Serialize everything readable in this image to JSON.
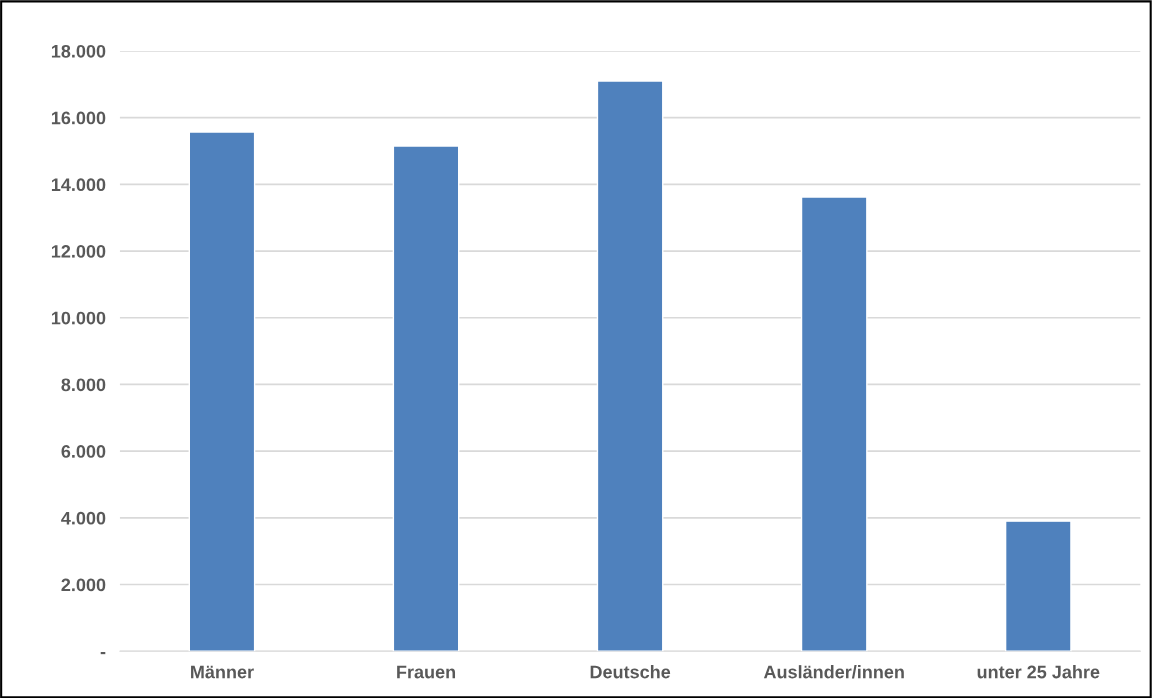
{
  "chart_data": {
    "type": "bar",
    "categories": [
      "Männer",
      "Frauen",
      "Deutsche",
      "Ausländer/innen",
      "unter 25 Jahre"
    ],
    "values": [
      15570,
      15150,
      17100,
      13620,
      3900
    ],
    "color": "#4f81bd",
    "ylim": [
      0,
      18000
    ],
    "yticks": [
      {
        "value": 0,
        "label": "-"
      },
      {
        "value": 2000,
        "label": "2.000"
      },
      {
        "value": 4000,
        "label": "4.000"
      },
      {
        "value": 6000,
        "label": "6.000"
      },
      {
        "value": 8000,
        "label": "8.000"
      },
      {
        "value": 10000,
        "label": "10.000"
      },
      {
        "value": 12000,
        "label": "12.000"
      },
      {
        "value": 14000,
        "label": "14.000"
      },
      {
        "value": 16000,
        "label": "16.000"
      },
      {
        "value": 18000,
        "label": "18.000"
      }
    ],
    "grid": "y"
  }
}
